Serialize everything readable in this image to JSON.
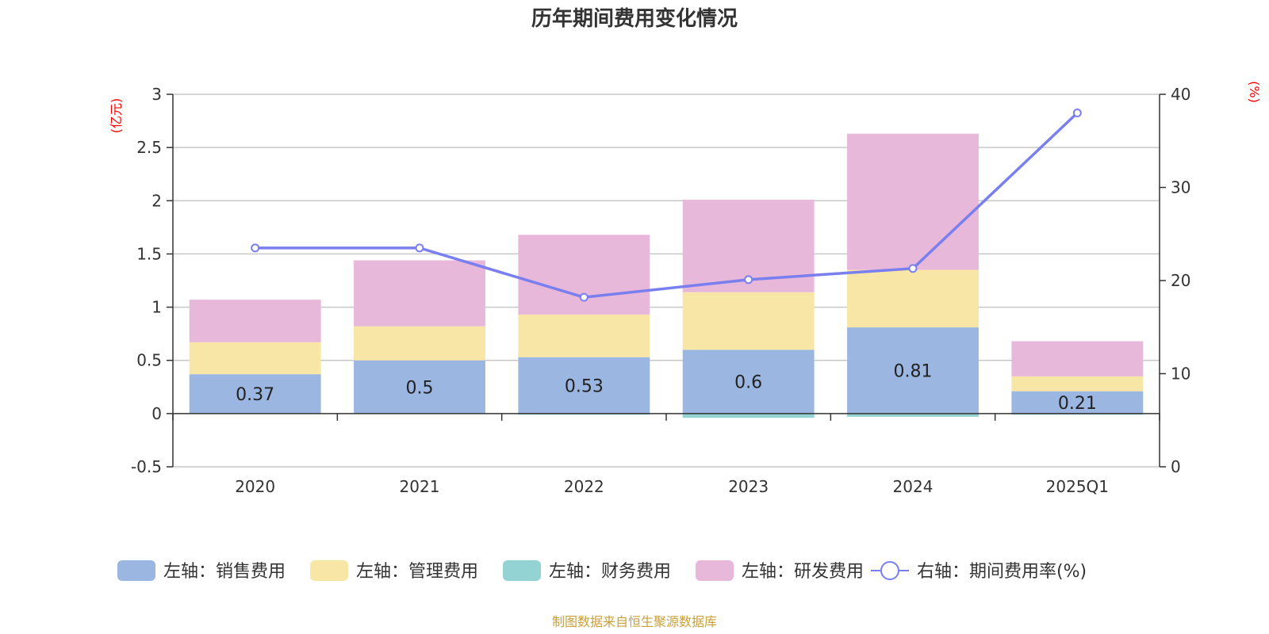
{
  "chart_data": {
    "type": "bar",
    "stacked": true,
    "title": "历年期间费用变化情况",
    "categories": [
      "2020",
      "2021",
      "2022",
      "2023",
      "2024",
      "2025Q1"
    ],
    "series": [
      {
        "name": "左轴：销售费用",
        "axis": "left",
        "color": "#9bb6e0",
        "values": [
          0.37,
          0.5,
          0.53,
          0.6,
          0.81,
          0.21
        ],
        "labels": [
          "0.37",
          "0.5",
          "0.53",
          "0.6",
          "0.81",
          "0.21"
        ]
      },
      {
        "name": "左轴：管理费用",
        "axis": "left",
        "color": "#f8e6a6",
        "values": [
          0.3,
          0.32,
          0.4,
          0.54,
          0.54,
          0.14
        ]
      },
      {
        "name": "左轴：财务费用",
        "axis": "left",
        "color": "#94d3d4",
        "values": [
          0.0,
          0.0,
          -0.01,
          -0.04,
          -0.03,
          -0.01
        ]
      },
      {
        "name": "左轴：研发费用",
        "axis": "left",
        "color": "#e8b8da",
        "values": [
          0.4,
          0.62,
          0.75,
          0.87,
          1.28,
          0.33
        ]
      }
    ],
    "line": {
      "name": "右轴：期间费用率(%)",
      "axis": "right",
      "color": "#7a7fef",
      "values": [
        23.5,
        23.5,
        18.2,
        20.1,
        21.3,
        38.0
      ]
    },
    "left_axis": {
      "unit": "(亿元)",
      "min": -0.5,
      "max": 3,
      "ticks": [
        -0.5,
        0,
        0.5,
        1,
        1.5,
        2,
        2.5,
        3
      ],
      "tick_labels": [
        "-0.5",
        "0",
        "0.5",
        "1",
        "1.5",
        "2",
        "2.5",
        "3"
      ]
    },
    "right_axis": {
      "unit": "(%)",
      "min": 0,
      "max": 40,
      "ticks": [
        0,
        10,
        20,
        30,
        40
      ],
      "tick_labels": [
        "0",
        "10",
        "20",
        "30",
        "40"
      ]
    },
    "legend_position": "bottom",
    "source": "制图数据来自恒生聚源数据库"
  }
}
